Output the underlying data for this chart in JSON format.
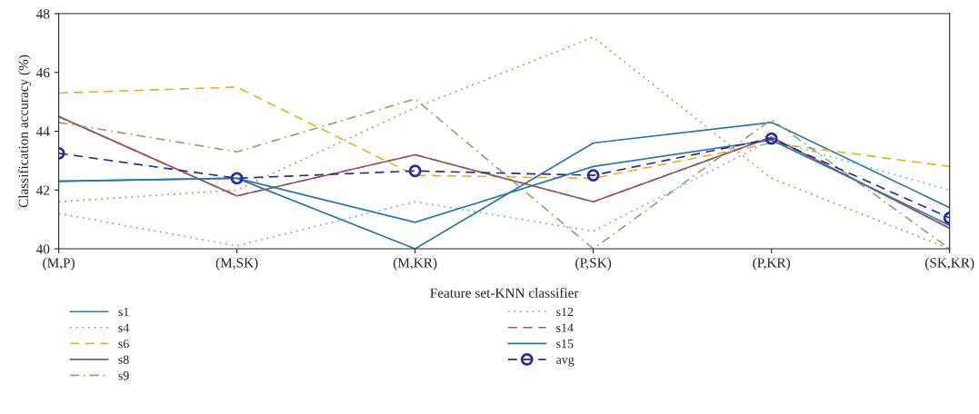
{
  "chart_data": {
    "type": "line",
    "xlabel": "Feature set-KNN classifier",
    "ylabel": "Classification accuracy (%)",
    "categories": [
      "(M,P)",
      "(M,SK)",
      "(M,KR)",
      "(P,SK)",
      "(P,KR)",
      "(SK,KR)"
    ],
    "ylim": [
      40,
      48
    ],
    "yticks": [
      40,
      42,
      44,
      46,
      48
    ],
    "grid": false,
    "legend": "bottom",
    "series": [
      {
        "name": "s1",
        "color": "#2a78b0",
        "line_style": "solid",
        "values": [
          42.3,
          42.4,
          40.0,
          43.6,
          44.3,
          41.4
        ]
      },
      {
        "name": "s4",
        "color": "#e07b39",
        "line_style": "dotted",
        "values": [
          41.6,
          42.0,
          44.8,
          47.2,
          42.4,
          40.0
        ]
      },
      {
        "name": "s6",
        "color": "#edb120",
        "line_style": "dashed",
        "values": [
          45.3,
          45.5,
          42.5,
          42.4,
          43.6,
          42.8
        ]
      },
      {
        "name": "s8",
        "color": "#8a5a7a",
        "line_style": "solid",
        "values": [
          44.5,
          41.8,
          43.2,
          41.6,
          43.8,
          40.7
        ]
      },
      {
        "name": "s9",
        "color": "#9aa36b",
        "line_style": "dashdot",
        "values": [
          44.3,
          43.3,
          45.1,
          40.0,
          44.4,
          40.0
        ]
      },
      {
        "name": "s12",
        "color": "#5aaee0",
        "line_style": "dotted",
        "values": [
          41.2,
          40.1,
          41.6,
          40.6,
          43.7,
          42.0
        ]
      },
      {
        "name": "s14",
        "color": "#a8584f",
        "line_style": "dashed",
        "values": [
          44.5,
          41.8,
          43.2,
          41.6,
          43.8,
          40.7
        ]
      },
      {
        "name": "s15",
        "color": "#2a78b0",
        "line_style": "solid",
        "values": [
          42.3,
          42.4,
          40.9,
          42.8,
          43.7,
          40.8
        ]
      },
      {
        "name": "avg",
        "color": "#2b2b9a",
        "line_style": "dashed",
        "marker": "circle",
        "values": [
          43.25,
          42.4,
          42.65,
          42.5,
          43.75,
          41.05
        ]
      }
    ]
  }
}
